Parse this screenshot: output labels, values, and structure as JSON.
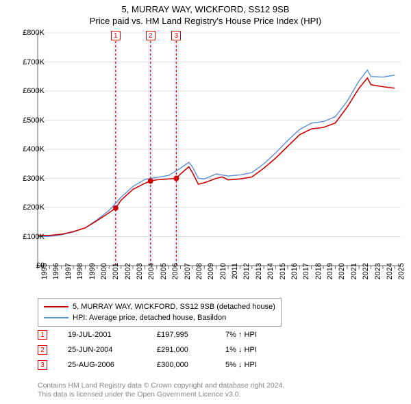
{
  "title": "5, MURRAY WAY, WICKFORD, SS12 9SB",
  "subtitle": "Price paid vs. HM Land Registry's House Price Index (HPI)",
  "chart": {
    "type": "line",
    "xlim": [
      1995,
      2025.5
    ],
    "ylim": [
      0,
      800000
    ],
    "ytick_step": 100000,
    "ytick_labels": [
      "£0",
      "£100K",
      "£200K",
      "£300K",
      "£400K",
      "£500K",
      "£600K",
      "£700K",
      "£800K"
    ],
    "xtick_step": 1,
    "xtick_labels": [
      "1995",
      "1996",
      "1997",
      "1998",
      "1999",
      "2000",
      "2001",
      "2002",
      "2003",
      "2004",
      "2005",
      "2006",
      "2007",
      "2008",
      "2009",
      "2010",
      "2011",
      "2012",
      "2013",
      "2014",
      "2015",
      "2016",
      "2017",
      "2018",
      "2019",
      "2020",
      "2021",
      "2022",
      "2023",
      "2024",
      "2025"
    ],
    "background_color": "#ffffff",
    "grid_color": "#bfbfbf",
    "axis_color": "#666666",
    "series": [
      {
        "name": "property",
        "label": "5, MURRAY WAY, WICKFORD, SS12 9SB (detached house)",
        "color": "#cc0000",
        "line_width": 1.6,
        "data": [
          [
            1995,
            103000
          ],
          [
            1996,
            104000
          ],
          [
            1997,
            108000
          ],
          [
            1998,
            117000
          ],
          [
            1999,
            130000
          ],
          [
            2000,
            155000
          ],
          [
            2001,
            182000
          ],
          [
            2001.55,
            197995
          ],
          [
            2002,
            225000
          ],
          [
            2003,
            262000
          ],
          [
            2004,
            283000
          ],
          [
            2004.48,
            291000
          ],
          [
            2005,
            295000
          ],
          [
            2006,
            298000
          ],
          [
            2006.65,
            300000
          ],
          [
            2007,
            315000
          ],
          [
            2007.7,
            340000
          ],
          [
            2008,
            320000
          ],
          [
            2008.5,
            280000
          ],
          [
            2009,
            285000
          ],
          [
            2010,
            300000
          ],
          [
            2010.5,
            305000
          ],
          [
            2011,
            295000
          ],
          [
            2012,
            298000
          ],
          [
            2013,
            305000
          ],
          [
            2014,
            335000
          ],
          [
            2015,
            370000
          ],
          [
            2016,
            410000
          ],
          [
            2017,
            450000
          ],
          [
            2018,
            470000
          ],
          [
            2019,
            475000
          ],
          [
            2020,
            490000
          ],
          [
            2021,
            545000
          ],
          [
            2022,
            610000
          ],
          [
            2022.7,
            645000
          ],
          [
            2023,
            622000
          ],
          [
            2024,
            615000
          ],
          [
            2025,
            610000
          ]
        ]
      },
      {
        "name": "hpi",
        "label": "HPI: Average price, detached house, Basildon",
        "color": "#5b8fd6",
        "line_width": 1.4,
        "data": [
          [
            1995,
            100000
          ],
          [
            1996,
            101000
          ],
          [
            1997,
            106000
          ],
          [
            1998,
            116000
          ],
          [
            1999,
            130000
          ],
          [
            2000,
            158000
          ],
          [
            2001,
            190000
          ],
          [
            2002,
            235000
          ],
          [
            2003,
            272000
          ],
          [
            2004,
            296000
          ],
          [
            2005,
            303000
          ],
          [
            2006,
            310000
          ],
          [
            2007,
            335000
          ],
          [
            2007.7,
            355000
          ],
          [
            2008,
            340000
          ],
          [
            2008.5,
            300000
          ],
          [
            2009,
            298000
          ],
          [
            2010,
            315000
          ],
          [
            2011,
            308000
          ],
          [
            2012,
            312000
          ],
          [
            2013,
            320000
          ],
          [
            2014,
            350000
          ],
          [
            2015,
            388000
          ],
          [
            2016,
            430000
          ],
          [
            2017,
            468000
          ],
          [
            2018,
            490000
          ],
          [
            2019,
            495000
          ],
          [
            2020,
            512000
          ],
          [
            2021,
            565000
          ],
          [
            2022,
            635000
          ],
          [
            2022.7,
            672000
          ],
          [
            2023,
            650000
          ],
          [
            2024,
            648000
          ],
          [
            2025,
            655000
          ]
        ]
      }
    ],
    "sale_markers": [
      {
        "n": "1",
        "x": 2001.55,
        "y": 197995,
        "band_width_years": 0.5
      },
      {
        "n": "2",
        "x": 2004.48,
        "y": 291000,
        "band_width_years": 0.5
      },
      {
        "n": "3",
        "x": 2006.65,
        "y": 300000,
        "band_width_years": 0.5
      }
    ],
    "marker_band_color": "#eaf1fb",
    "marker_dot_color": "#cc0000",
    "marker_dot_radius": 4
  },
  "legend": {
    "items": [
      {
        "color": "#cc0000",
        "width": 2,
        "label_path": "chart.series.0.label"
      },
      {
        "color": "#5b8fd6",
        "width": 1.5,
        "label_path": "chart.series.1.label"
      }
    ]
  },
  "sales": [
    {
      "n": "1",
      "date": "19-JUL-2001",
      "price": "£197,995",
      "hpi": "7% ↑ HPI"
    },
    {
      "n": "2",
      "date": "25-JUN-2004",
      "price": "£291,000",
      "hpi": "1% ↓ HPI"
    },
    {
      "n": "3",
      "date": "25-AUG-2006",
      "price": "£300,000",
      "hpi": "5% ↓ HPI"
    }
  ],
  "footer": {
    "line1": "Contains HM Land Registry data © Crown copyright and database right 2024.",
    "line2": "This data is licensed under the Open Government Licence v3.0."
  }
}
